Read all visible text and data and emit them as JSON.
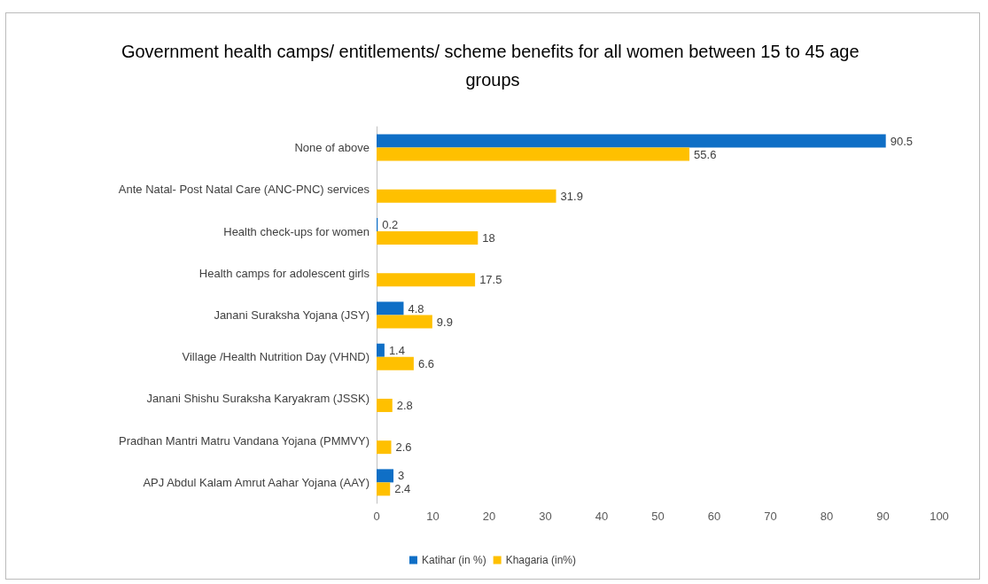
{
  "chart_data": {
    "type": "bar",
    "orientation": "horizontal",
    "title": "Government health camps/ entitlements/ scheme benefits for all women between 15 to 45 age groups",
    "categories": [
      "None of above",
      "Ante Natal- Post Natal Care (ANC-PNC) services",
      "Health check-ups for women",
      "Health camps for adolescent girls",
      "Janani Suraksha Yojana (JSY)",
      "Village /Health Nutrition Day (VHND)",
      "Janani Shishu Suraksha Karyakram (JSSK)",
      "Pradhan Mantri Matru Vandana Yojana (PMMVY)",
      "APJ Abdul Kalam Amrut Aahar Yojana (AAY)"
    ],
    "series": [
      {
        "name": "Katihar (in %)",
        "color": "#0f6fc6",
        "values": [
          90.5,
          null,
          0.2,
          null,
          4.8,
          1.4,
          null,
          null,
          3
        ]
      },
      {
        "name": "Khagaria (in%)",
        "color": "#ffc000",
        "values": [
          55.6,
          31.9,
          18,
          17.5,
          9.9,
          6.6,
          2.8,
          2.6,
          2.4
        ]
      }
    ],
    "xlim": [
      0,
      100
    ],
    "xticks": [
      0,
      10,
      20,
      30,
      40,
      50,
      60,
      70,
      80,
      90,
      100
    ],
    "grid": false,
    "legend": "bottom",
    "data_labels": true
  }
}
